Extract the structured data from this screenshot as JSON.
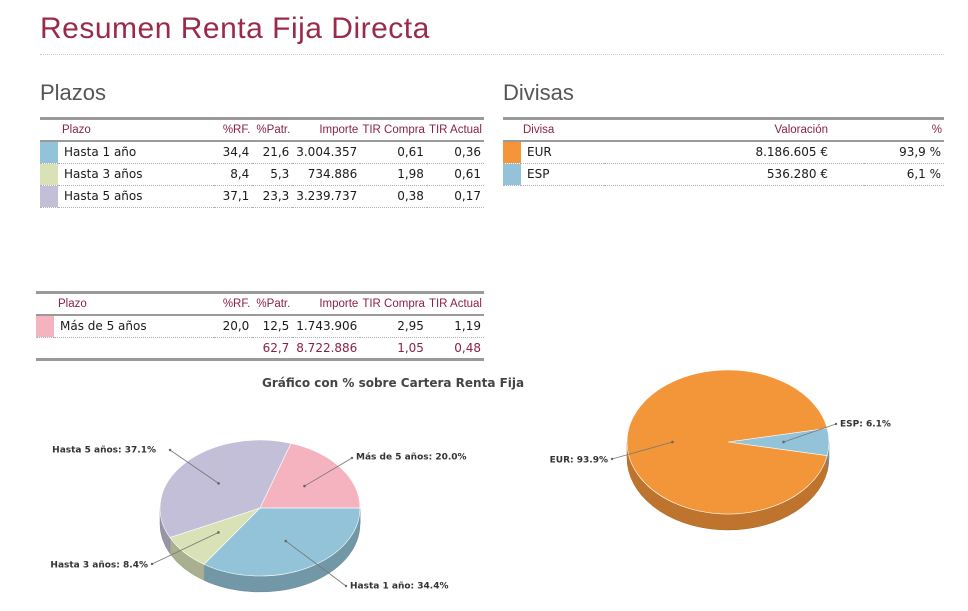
{
  "title": "Resumen Renta Fija Directa",
  "plazos": {
    "heading": "Plazos",
    "headers": [
      "Plazo",
      "%RF.",
      "%Patr.",
      "Importe",
      "TIR Compra",
      "TIR Actual"
    ],
    "rows": [
      {
        "label": "Hasta 1 año",
        "rf": "34,4",
        "patr": "21,6",
        "importe": "3.004.357",
        "tir_compra": "0,61",
        "tir_actual": "0,36",
        "color": "#92c3d8"
      },
      {
        "label": "Hasta 3 años",
        "rf": "8,4",
        "patr": "5,3",
        "importe": "734.886",
        "tir_compra": "1,98",
        "tir_actual": "0,61",
        "color": "#d9e2b7"
      },
      {
        "label": "Hasta 5 años",
        "rf": "37,1",
        "patr": "23,3",
        "importe": "3.239.737",
        "tir_compra": "0,38",
        "tir_actual": "0,17",
        "color": "#c3bfd8"
      }
    ]
  },
  "plazos2": {
    "headers": [
      "Plazo",
      "%RF.",
      "%Patr.",
      "Importe",
      "TIR Compra",
      "TIR Actual"
    ],
    "rows": [
      {
        "label": "Más de 5 años",
        "rf": "20,0",
        "patr": "12,5",
        "importe": "1.743.906",
        "tir_compra": "2,95",
        "tir_actual": "1,19",
        "color": "#f4b3bf"
      }
    ],
    "total": {
      "patr": "62,7",
      "importe": "8.722.886",
      "tir_compra": "1,05",
      "tir_actual": "0,48"
    }
  },
  "divisas": {
    "heading": "Divisas",
    "headers": [
      "Divisa",
      "Valoración",
      "%"
    ],
    "rows": [
      {
        "label": "EUR",
        "valoracion": "8.186.605 €",
        "pct": "93,9 %",
        "color": "#f39539"
      },
      {
        "label": "ESP",
        "valoracion": "536.280 €",
        "pct": "6,1 %",
        "color": "#92c3d8"
      }
    ]
  },
  "chart_data": [
    {
      "type": "pie",
      "title": "Gráfico con % sobre Cartera Renta Fija",
      "slices": [
        {
          "label": "Más de 5 años: 20.0%",
          "value": 20.0,
          "color": "#f4b3bf"
        },
        {
          "label": "Hasta 1 año: 34.4%",
          "value": 34.4,
          "color": "#92c3d8"
        },
        {
          "label": "Hasta 3 años: 8.4%",
          "value": 8.4,
          "color": "#d9e2b7"
        },
        {
          "label": "Hasta 5 años: 37.1%",
          "value": 37.1,
          "color": "#c3bfd8"
        }
      ]
    },
    {
      "type": "pie",
      "title": "",
      "slices": [
        {
          "label": "ESP: 6.1%",
          "value": 6.1,
          "color": "#92c3d8"
        },
        {
          "label": "EUR: 93.9%",
          "value": 93.9,
          "color": "#f39539"
        }
      ]
    }
  ]
}
